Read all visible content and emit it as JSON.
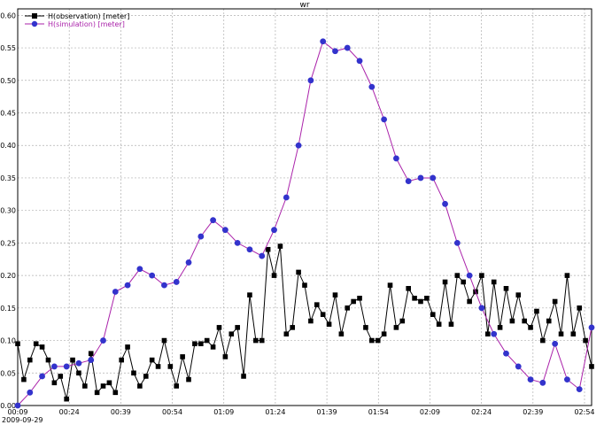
{
  "chart_data": {
    "type": "line",
    "title": "wr",
    "date_label": "2009-09-29",
    "xlabel": "",
    "ylabel": "",
    "x_tick_labels": [
      "00:09",
      "00:24",
      "00:39",
      "00:54",
      "01:09",
      "01:24",
      "01:39",
      "01:54",
      "02:09",
      "02:24",
      "02:39",
      "02:54"
    ],
    "y_tick_labels": [
      "0.00",
      "0.05",
      "0.10",
      "0.15",
      "0.20",
      "0.25",
      "0.30",
      "0.35",
      "0.40",
      "0.45",
      "0.50",
      "0.55",
      "0.60"
    ],
    "ylim": [
      0,
      0.61
    ],
    "xlim_minutes": [
      9,
      56
    ],
    "grid": true,
    "legend_position": "top-left",
    "series": [
      {
        "name": "H(observation) [meter]",
        "color": "#000000",
        "marker": "square",
        "points": [
          [
            9.0,
            0.095
          ],
          [
            9.5,
            0.04
          ],
          [
            10.0,
            0.07
          ],
          [
            10.5,
            0.095
          ],
          [
            11.0,
            0.09
          ],
          [
            11.5,
            0.07
          ],
          [
            12.0,
            0.035
          ],
          [
            12.5,
            0.045
          ],
          [
            13.0,
            0.01
          ],
          [
            13.5,
            0.07
          ],
          [
            14.0,
            0.05
          ],
          [
            14.5,
            0.03
          ],
          [
            15.0,
            0.08
          ],
          [
            15.5,
            0.02
          ],
          [
            16.0,
            0.03
          ],
          [
            16.5,
            0.035
          ],
          [
            17.0,
            0.02
          ],
          [
            17.5,
            0.07
          ],
          [
            18.0,
            0.09
          ],
          [
            18.5,
            0.05
          ],
          [
            19.0,
            0.03
          ],
          [
            19.5,
            0.045
          ],
          [
            20.0,
            0.07
          ],
          [
            20.5,
            0.06
          ],
          [
            21.0,
            0.1
          ],
          [
            21.5,
            0.06
          ],
          [
            22.0,
            0.03
          ],
          [
            22.5,
            0.075
          ],
          [
            23.0,
            0.04
          ],
          [
            23.5,
            0.095
          ],
          [
            24.0,
            0.095
          ],
          [
            24.5,
            0.1
          ],
          [
            25.0,
            0.09
          ],
          [
            25.5,
            0.12
          ],
          [
            26.0,
            0.075
          ],
          [
            26.5,
            0.11
          ],
          [
            27.0,
            0.12
          ],
          [
            27.5,
            0.045
          ],
          [
            28.0,
            0.17
          ],
          [
            28.5,
            0.1
          ],
          [
            29.0,
            0.1
          ],
          [
            29.5,
            0.24
          ],
          [
            30.0,
            0.2
          ],
          [
            30.5,
            0.245
          ],
          [
            31.0,
            0.11
          ],
          [
            31.5,
            0.12
          ],
          [
            32.0,
            0.205
          ],
          [
            32.5,
            0.185
          ],
          [
            33.0,
            0.13
          ],
          [
            33.5,
            0.155
          ],
          [
            34.0,
            0.14
          ],
          [
            34.5,
            0.125
          ],
          [
            35.0,
            0.17
          ],
          [
            35.5,
            0.11
          ],
          [
            36.0,
            0.15
          ],
          [
            36.5,
            0.16
          ],
          [
            37.0,
            0.165
          ],
          [
            37.5,
            0.12
          ],
          [
            38.0,
            0.1
          ],
          [
            38.5,
            0.1
          ],
          [
            39.0,
            0.11
          ],
          [
            39.5,
            0.185
          ],
          [
            40.0,
            0.12
          ],
          [
            40.5,
            0.13
          ],
          [
            41.0,
            0.18
          ],
          [
            41.5,
            0.165
          ],
          [
            42.0,
            0.16
          ],
          [
            42.5,
            0.165
          ],
          [
            43.0,
            0.14
          ],
          [
            43.5,
            0.125
          ],
          [
            44.0,
            0.19
          ],
          [
            44.5,
            0.125
          ],
          [
            45.0,
            0.2
          ],
          [
            45.5,
            0.19
          ],
          [
            46.0,
            0.16
          ],
          [
            46.5,
            0.175
          ],
          [
            47.0,
            0.2
          ],
          [
            47.5,
            0.11
          ],
          [
            48.0,
            0.19
          ],
          [
            48.5,
            0.12
          ],
          [
            49.0,
            0.18
          ],
          [
            49.5,
            0.13
          ],
          [
            50.0,
            0.17
          ],
          [
            50.5,
            0.13
          ],
          [
            51.0,
            0.12
          ],
          [
            51.5,
            0.145
          ],
          [
            52.0,
            0.1
          ],
          [
            52.5,
            0.13
          ],
          [
            53.0,
            0.16
          ],
          [
            53.5,
            0.11
          ],
          [
            54.0,
            0.2
          ],
          [
            54.5,
            0.11
          ],
          [
            55.0,
            0.15
          ],
          [
            55.5,
            0.1
          ],
          [
            56.0,
            0.06
          ]
        ]
      },
      {
        "name": "H(simulation) [meter]",
        "color": "#3333cc",
        "line_color": "#aa22aa",
        "marker": "circle",
        "points": [
          [
            9.0,
            0.0
          ],
          [
            10.0,
            0.02
          ],
          [
            11.0,
            0.045
          ],
          [
            12.0,
            0.06
          ],
          [
            13.0,
            0.06
          ],
          [
            14.0,
            0.065
          ],
          [
            15.0,
            0.07
          ],
          [
            16.0,
            0.1
          ],
          [
            17.0,
            0.175
          ],
          [
            18.0,
            0.185
          ],
          [
            19.0,
            0.21
          ],
          [
            20.0,
            0.2
          ],
          [
            21.0,
            0.185
          ],
          [
            22.0,
            0.19
          ],
          [
            23.0,
            0.22
          ],
          [
            24.0,
            0.26
          ],
          [
            25.0,
            0.285
          ],
          [
            26.0,
            0.27
          ],
          [
            27.0,
            0.25
          ],
          [
            28.0,
            0.24
          ],
          [
            29.0,
            0.23
          ],
          [
            30.0,
            0.27
          ],
          [
            31.0,
            0.32
          ],
          [
            32.0,
            0.4
          ],
          [
            33.0,
            0.5
          ],
          [
            34.0,
            0.56
          ],
          [
            35.0,
            0.545
          ],
          [
            36.0,
            0.55
          ],
          [
            37.0,
            0.53
          ],
          [
            38.0,
            0.49
          ],
          [
            39.0,
            0.44
          ],
          [
            40.0,
            0.38
          ],
          [
            41.0,
            0.345
          ],
          [
            42.0,
            0.35
          ],
          [
            43.0,
            0.35
          ],
          [
            44.0,
            0.31
          ],
          [
            45.0,
            0.25
          ],
          [
            46.0,
            0.2
          ],
          [
            47.0,
            0.15
          ],
          [
            48.0,
            0.11
          ],
          [
            49.0,
            0.08
          ],
          [
            50.0,
            0.06
          ],
          [
            51.0,
            0.04
          ],
          [
            52.0,
            0.035
          ],
          [
            53.0,
            0.095
          ],
          [
            54.0,
            0.04
          ],
          [
            55.0,
            0.025
          ],
          [
            56.0,
            0.12
          ]
        ]
      }
    ]
  }
}
